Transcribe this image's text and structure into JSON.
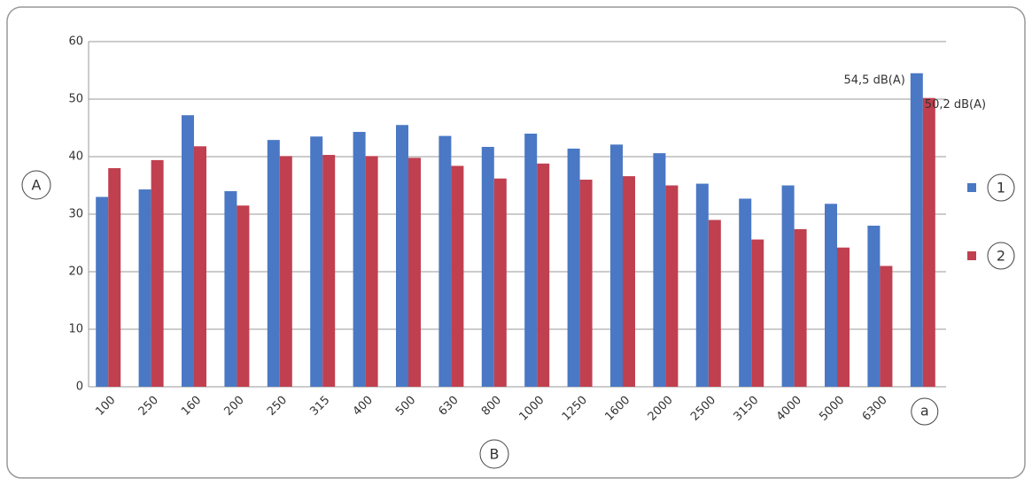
{
  "chart_data": {
    "type": "bar",
    "y_label": "A",
    "x_label": "B",
    "categories": [
      "100",
      "250",
      "160",
      "200",
      "250",
      "315",
      "400",
      "500",
      "630",
      "800",
      "1000",
      "1250",
      "1600",
      "2000",
      "2500",
      "3150",
      "4000",
      "5000",
      "6300",
      "a"
    ],
    "series": [
      {
        "name": "1",
        "color": "#4a78c4",
        "values": [
          33,
          34.3,
          47.2,
          34,
          42.9,
          43.5,
          44.3,
          45.5,
          43.6,
          41.7,
          44,
          41.4,
          42.1,
          40.6,
          35.3,
          32.7,
          35,
          31.8,
          28,
          54.5
        ],
        "value_labels": [
          null,
          null,
          null,
          null,
          null,
          null,
          null,
          null,
          null,
          null,
          null,
          null,
          null,
          null,
          null,
          null,
          null,
          null,
          null,
          "54,5 dB(A)"
        ]
      },
      {
        "name": "2",
        "color": "#c0404f",
        "values": [
          38,
          39.4,
          41.8,
          31.5,
          40.1,
          40.3,
          40.1,
          39.8,
          38.4,
          36.2,
          38.8,
          36,
          36.6,
          35,
          29,
          25.6,
          27.4,
          24.2,
          21,
          50.2
        ],
        "value_labels": [
          null,
          null,
          null,
          null,
          null,
          null,
          null,
          null,
          null,
          null,
          null,
          null,
          null,
          null,
          null,
          null,
          null,
          null,
          null,
          "50,2 dB(A)"
        ]
      }
    ],
    "ylim": [
      0,
      60
    ],
    "yticks": [
      0,
      10,
      20,
      30,
      40,
      50,
      60
    ],
    "grid": true,
    "legend": "right"
  }
}
